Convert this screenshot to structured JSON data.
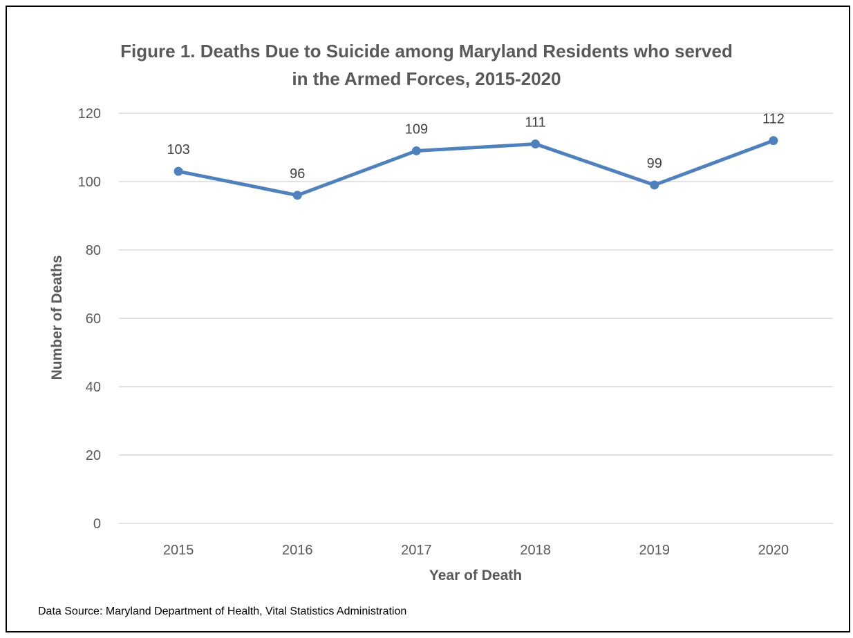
{
  "chart_data": {
    "type": "line",
    "title_line1": "Figure 1. Deaths Due to Suicide among Maryland Residents who served",
    "title_line2": "in the Armed Forces, 2015-2020",
    "xlabel": "Year of Death",
    "ylabel": "Number of Deaths",
    "categories": [
      "2015",
      "2016",
      "2017",
      "2018",
      "2019",
      "2020"
    ],
    "values": [
      103,
      96,
      109,
      111,
      99,
      112
    ],
    "data_labels": [
      "103",
      "96",
      "109",
      "111",
      "99",
      "112"
    ],
    "ylim": [
      0,
      120
    ],
    "yticks": [
      "0",
      "20",
      "40",
      "60",
      "80",
      "100",
      "120"
    ],
    "grid": true,
    "legend": "none",
    "line_color": "#4f81bd",
    "grid_color": "#d9d9d9",
    "text_color": "#595959"
  },
  "footer": {
    "source": "Data Source: Maryland Department of Health, Vital Statistics Administration"
  }
}
